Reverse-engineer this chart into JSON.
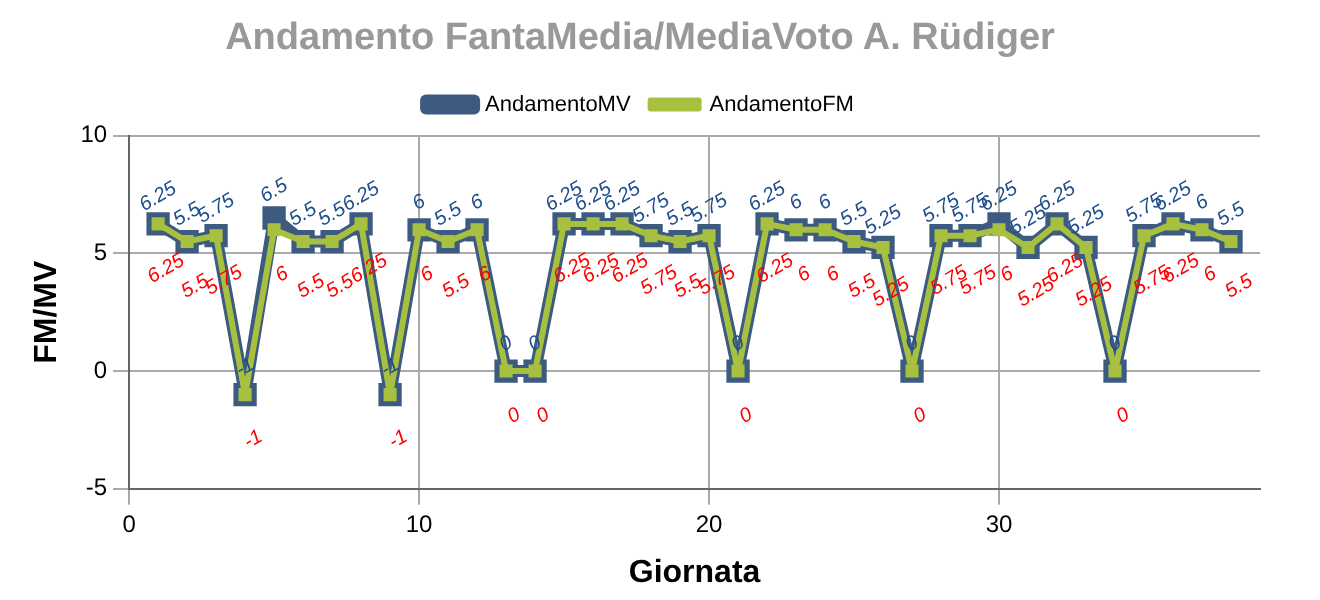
{
  "chart_data": {
    "type": "line",
    "title": "Andamento FantaMedia/MediaVoto A. Rüdiger",
    "xlabel": "Giornata",
    "ylabel": "FM/MV",
    "x": [
      1,
      2,
      3,
      4,
      5,
      6,
      7,
      8,
      9,
      10,
      11,
      12,
      13,
      14,
      15,
      16,
      17,
      18,
      19,
      20,
      21,
      22,
      23,
      24,
      25,
      26,
      27,
      28,
      29,
      30,
      31,
      32,
      33,
      34,
      35,
      36,
      37,
      38
    ],
    "series": [
      {
        "name": "AndamentoMV",
        "color": "#3d5a80",
        "values": [
          6.25,
          5.5,
          5.75,
          -1,
          6.5,
          5.5,
          5.5,
          6.25,
          -1,
          6,
          5.5,
          6,
          0,
          0,
          6.25,
          6.25,
          6.25,
          5.75,
          5.5,
          5.75,
          0,
          6.25,
          6,
          6,
          5.5,
          5.25,
          0,
          5.75,
          5.75,
          6.25,
          5.25,
          6.25,
          5.25,
          0,
          5.75,
          6.25,
          6,
          5.5
        ]
      },
      {
        "name": "AndamentoFM",
        "color": "#a8c040",
        "values": [
          6.25,
          5.5,
          5.75,
          -1,
          6,
          5.5,
          5.5,
          6.25,
          -1,
          6,
          5.5,
          6,
          0,
          0,
          6.25,
          6.25,
          6.25,
          5.75,
          5.5,
          5.75,
          0,
          6.25,
          6,
          6,
          5.5,
          5.25,
          0,
          5.75,
          5.75,
          6,
          5.25,
          6.25,
          5.25,
          0,
          5.75,
          6.25,
          6,
          5.5
        ]
      }
    ],
    "xlim": [
      0,
      39
    ],
    "xticks": [
      0,
      10,
      20,
      30
    ],
    "ylim": [
      -5,
      10
    ],
    "yticks": [
      -5,
      0,
      5,
      10
    ],
    "grid": true,
    "legend": "top",
    "marker": "square",
    "data_labels": true
  }
}
